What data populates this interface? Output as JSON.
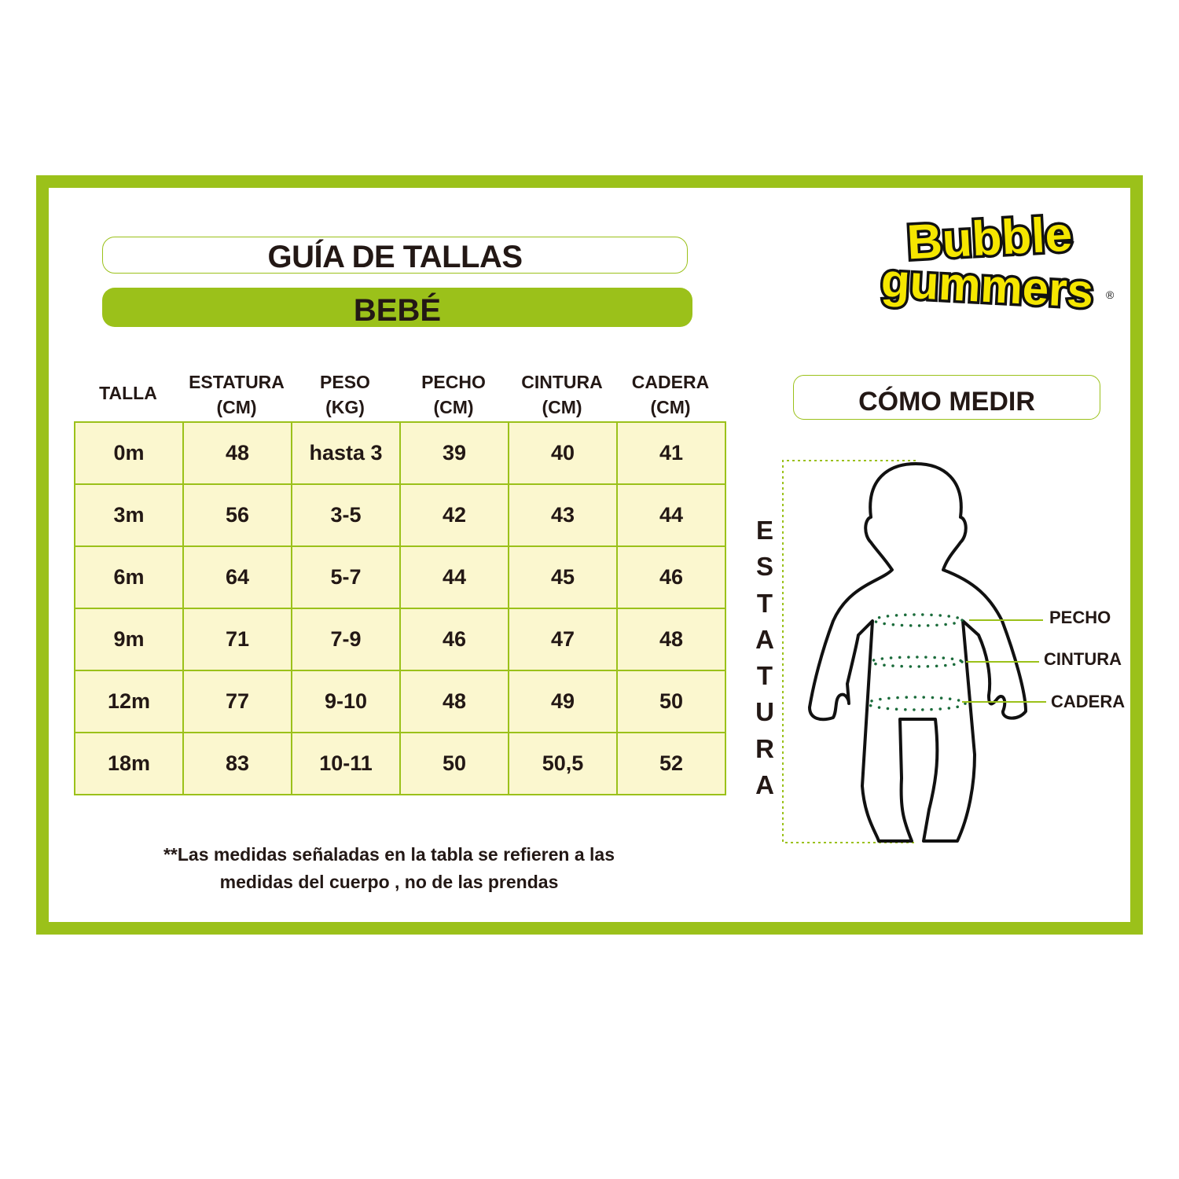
{
  "logo": {
    "line1": "Bubble",
    "line2": "gummers",
    "mark": "®"
  },
  "title": "GUÍA DE TALLAS",
  "subtitle": "BEBÉ",
  "table": {
    "headers": [
      [
        "TALLA",
        ""
      ],
      [
        "ESTATURA",
        "(CM)"
      ],
      [
        "PESO",
        "(KG)"
      ],
      [
        "PECHO",
        "(CM)"
      ],
      [
        "CINTURA",
        "(CM)"
      ],
      [
        "CADERA",
        "(CM)"
      ]
    ],
    "rows": [
      [
        "0m",
        "48",
        "hasta 3",
        "39",
        "40",
        "41"
      ],
      [
        "3m",
        "56",
        "3-5",
        "42",
        "43",
        "44"
      ],
      [
        "6m",
        "64",
        "5-7",
        "44",
        "45",
        "46"
      ],
      [
        "9m",
        "71",
        "7-9",
        "46",
        "47",
        "48"
      ],
      [
        "12m",
        "77",
        "9-10",
        "48",
        "49",
        "50"
      ],
      [
        "18m",
        "83",
        "10-11",
        "50",
        "50,5",
        "52"
      ]
    ]
  },
  "note": {
    "line1": "**Las medidas señaladas en la tabla se refieren a las",
    "line2": "medidas del cuerpo , no de las prendas"
  },
  "how_to": {
    "title": "CÓMO MEDIR",
    "height_label": "ESTATURA",
    "labels": {
      "chest": "PECHO",
      "waist": "CINTURA",
      "hip": "CADERA"
    }
  },
  "colors": {
    "accent": "#9bc11a",
    "cell": "#fbf7cf",
    "text": "#231815",
    "dots": "#1a6b3a",
    "logo": "#f5e600"
  }
}
